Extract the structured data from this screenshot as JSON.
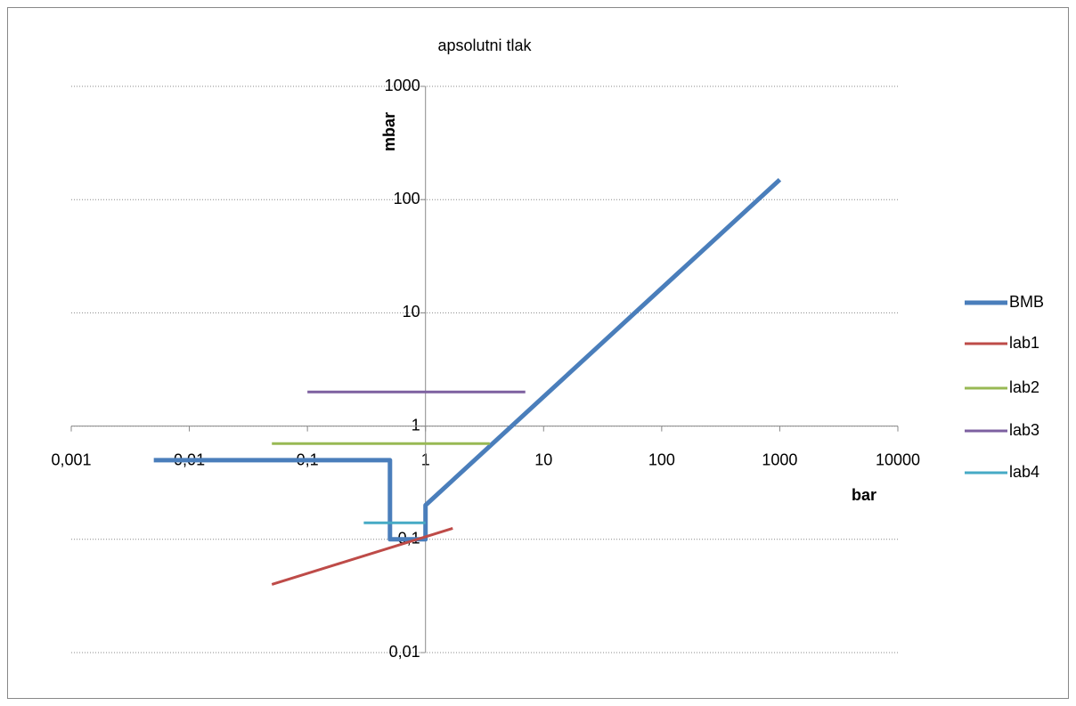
{
  "chart_data": {
    "type": "line",
    "title": "apsolutni tlak",
    "x_label": "bar",
    "y_label": "mbar",
    "xscale": "log",
    "yscale": "log",
    "grid": true,
    "legend": "right",
    "xlim": [
      0.001,
      10000
    ],
    "xticks": [
      {
        "value": 0.001,
        "label": "0,001"
      },
      {
        "value": 0.01,
        "label": "0,01"
      },
      {
        "value": 0.1,
        "label": "0,1"
      },
      1,
      10,
      100,
      1000,
      10000
    ],
    "ylim": [
      0.01,
      1000
    ],
    "yticks": [
      {
        "value": 0.01,
        "label": "0,01"
      },
      {
        "value": 0.1,
        "label": "0,1"
      },
      1,
      10,
      100,
      1000
    ],
    "series": [
      {
        "name": "BMB",
        "color": "#4a7ebb",
        "x": [
          0.005,
          0.5,
          0.5,
          1,
          1,
          1000
        ],
        "values": [
          0.5,
          0.5,
          0.1,
          0.1,
          0.2,
          150
        ]
      },
      {
        "name": "lab1",
        "color": "#be4b48",
        "x": [
          0.05,
          1.7
        ],
        "values": [
          0.04,
          0.125
        ]
      },
      {
        "name": "lab2",
        "color": "#98b954",
        "x": [
          0.05,
          3.5
        ],
        "values": [
          0.7,
          0.7
        ]
      },
      {
        "name": "lab3",
        "color": "#7d60a0",
        "x": [
          0.1,
          7
        ],
        "values": [
          2,
          2
        ]
      },
      {
        "name": "lab4",
        "color": "#46aac5",
        "x": [
          0.3,
          1
        ],
        "values": [
          0.14,
          0.14
        ]
      }
    ]
  }
}
